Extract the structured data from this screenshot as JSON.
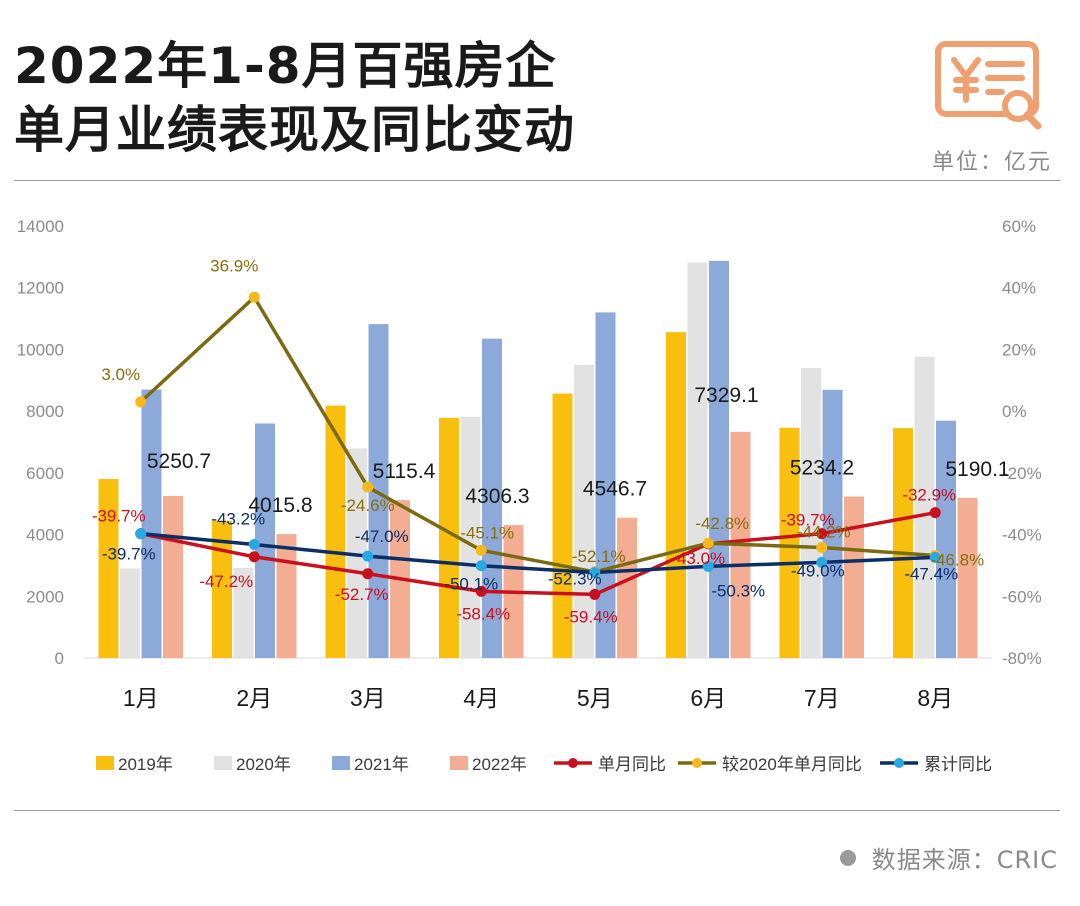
{
  "header": {
    "title_line1": "2022年1-8月百强房企",
    "title_line2": "单月业绩表现及同比变动",
    "unit": "单位：亿元",
    "source": "数据来源：CRIC"
  },
  "logo": {
    "icon": "yen-receipt-search-icon",
    "color": "#f0a070"
  },
  "chart_data": {
    "type": "bar",
    "categories": [
      "1月",
      "2月",
      "3月",
      "4月",
      "5月",
      "6月",
      "7月",
      "8月"
    ],
    "y_left": {
      "ylim": [
        0,
        14000
      ],
      "ticks": [
        0,
        2000,
        4000,
        6000,
        8000,
        10000,
        12000,
        14000
      ]
    },
    "y_right": {
      "ylim": [
        -80,
        60
      ],
      "ticks": [
        -80,
        -60,
        -40,
        -20,
        0,
        20,
        40,
        60
      ],
      "unit": "%"
    },
    "grid": false,
    "legend_position": "bottom",
    "bar_series": [
      {
        "name": "2019年",
        "color": "#f9bf0f",
        "values": [
          5800,
          4450,
          8180,
          7780,
          8570,
          10560,
          7460,
          7450
        ]
      },
      {
        "name": "2020年",
        "color": "#e2e2e2",
        "values": [
          2900,
          2920,
          6790,
          7820,
          9500,
          12820,
          9400,
          9760
        ]
      },
      {
        "name": "2021年",
        "color": "#8da9d9",
        "values": [
          8700,
          7600,
          10820,
          10350,
          11200,
          12870,
          8690,
          7690
        ]
      },
      {
        "name": "2022年",
        "color": "#f2ad93",
        "values": [
          5250.7,
          4015.8,
          5115.4,
          4306.3,
          4546.7,
          7329.1,
          5234.2,
          5190.1
        ],
        "labels": [
          "5250.7",
          "4015.8",
          "5115.4",
          "4306.3",
          "4546.7",
          "7329.1",
          "5234.2",
          "5190.1"
        ]
      }
    ],
    "line_series": [
      {
        "name": "单月同比",
        "color": "#c8101e",
        "marker": "#c8101e",
        "values": [
          -39.7,
          -47.2,
          -52.7,
          -58.4,
          -59.4,
          -43.0,
          -39.7,
          -32.9
        ],
        "labels": [
          "-39.7%",
          "-47.2%",
          "-52.7%",
          "-58.4%",
          "-59.4%",
          "-43.0%",
          "-39.7%",
          "-32.9%"
        ]
      },
      {
        "name": "较2020年单月同比",
        "color": "#7c6a10",
        "marker": "#f7b81b",
        "values": [
          3.0,
          36.9,
          -24.6,
          -45.1,
          -52.1,
          -42.8,
          -44.2,
          -46.8
        ],
        "labels": [
          "3.0%",
          "36.9%",
          "-24.6%",
          "-45.1%",
          "-52.1%",
          "-42.8%",
          "-44.2%",
          "-46.8%"
        ]
      },
      {
        "name": "累计同比",
        "color": "#0b2e67",
        "marker": "#2aa8e0",
        "values": [
          -39.7,
          -43.2,
          -47.0,
          -50.1,
          -52.3,
          -50.3,
          -49.0,
          -47.4
        ],
        "labels": [
          "-39.7%",
          "-43.2%",
          "-47.0%",
          "-50.1%",
          "-52.3%",
          "-50.3%",
          "-49.0%",
          "-47.4%"
        ]
      }
    ]
  }
}
